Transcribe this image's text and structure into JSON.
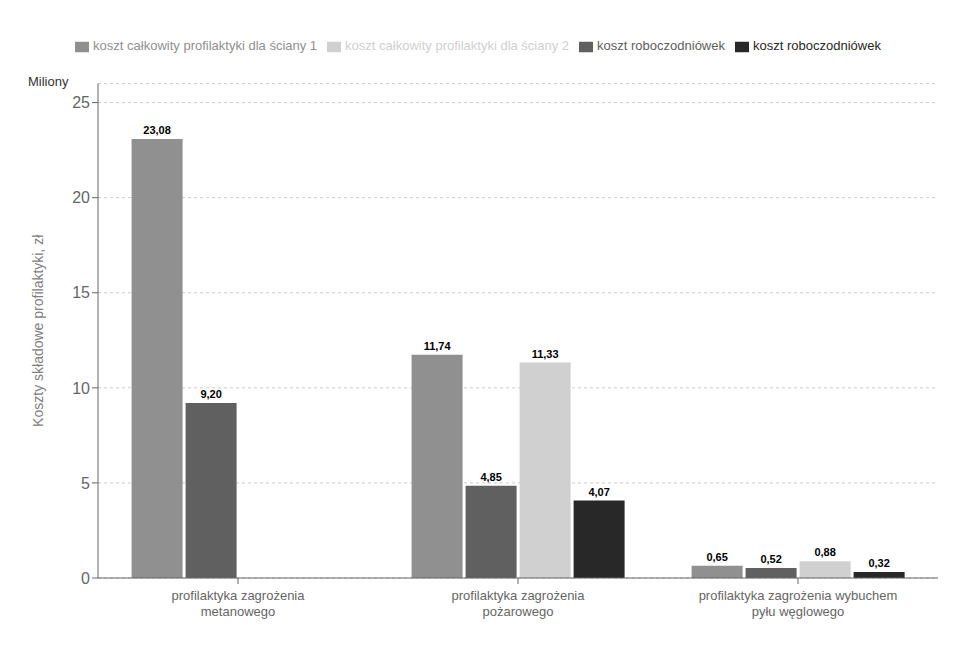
{
  "chart_data": {
    "type": "bar",
    "categories": [
      "profilaktyka zagrożenia\nmetanowego",
      "profilaktyka zagrożenia\npożarowego",
      "profilaktyka zagrożenia wybuchem\npyłu węglowego"
    ],
    "series": [
      {
        "name": "koszt całkowity profilaktyki dla ściany 1",
        "color": "#909090",
        "values": [
          23.08,
          11.74,
          0.65
        ],
        "value_labels": [
          "23,08",
          "11,74",
          "0,65"
        ]
      },
      {
        "name": "koszt roboczodniówek",
        "color": "#606060",
        "values": [
          9.2,
          4.85,
          0.52
        ],
        "value_labels": [
          "9,20",
          "4,85",
          "0,52"
        ]
      },
      {
        "name": "koszt całkowity profilaktyki dla ściany 2",
        "color": "#d0d0d0",
        "values": [
          null,
          11.33,
          0.88
        ],
        "value_labels": [
          null,
          "11,33",
          "0,88"
        ]
      },
      {
        "name": "koszt roboczodniówek",
        "color": "#282828",
        "values": [
          null,
          4.07,
          0.32
        ],
        "value_labels": [
          null,
          "4,07",
          "0,32"
        ]
      }
    ],
    "ylabel": "Koszty składowe profilaktyki, zł",
    "annotations": [
      "Miliony"
    ],
    "ylim": [
      0,
      26
    ],
    "yticks": [
      0,
      5,
      10,
      15,
      20,
      25
    ],
    "grid": true,
    "legend": "top",
    "data_labels": true
  }
}
